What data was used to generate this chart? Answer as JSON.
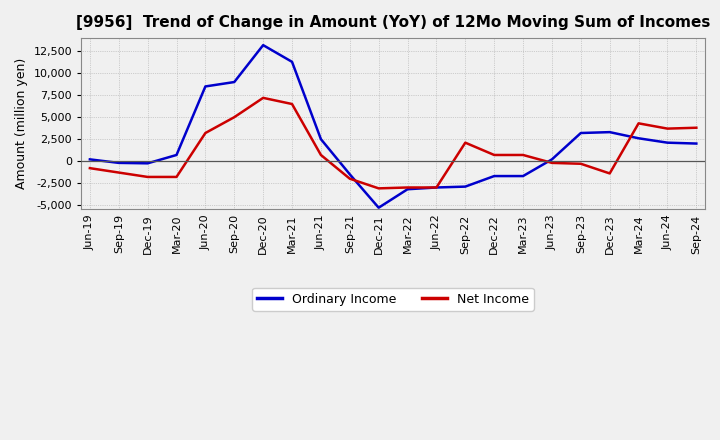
{
  "title": "[9956]  Trend of Change in Amount (YoY) of 12Mo Moving Sum of Incomes",
  "ylabel": "Amount (million yen)",
  "background_color": "#f0f0f0",
  "plot_bg_color": "#f0f0f0",
  "grid_color": "#999999",
  "x_labels": [
    "Jun-19",
    "Sep-19",
    "Dec-19",
    "Mar-20",
    "Jun-20",
    "Sep-20",
    "Dec-20",
    "Mar-21",
    "Jun-21",
    "Sep-21",
    "Dec-21",
    "Mar-22",
    "Jun-22",
    "Sep-22",
    "Dec-22",
    "Mar-23",
    "Jun-23",
    "Sep-23",
    "Dec-23",
    "Mar-24",
    "Jun-24",
    "Sep-24"
  ],
  "ordinary_income": [
    200,
    -200,
    -250,
    700,
    8500,
    9000,
    13200,
    11300,
    2500,
    -1500,
    -5300,
    -3200,
    -3000,
    -2900,
    -1700,
    -1700,
    200,
    3200,
    3300,
    2600,
    2100,
    2000
  ],
  "net_income": [
    -800,
    -1300,
    -1800,
    -1800,
    3200,
    5000,
    7200,
    6500,
    700,
    -2000,
    -3100,
    -3000,
    -3000,
    2100,
    700,
    700,
    -200,
    -300,
    -1400,
    4300,
    3700,
    3800
  ],
  "ordinary_color": "#0000cc",
  "net_color": "#cc0000",
  "ylim": [
    -5500,
    14000
  ],
  "yticks": [
    -5000,
    -2500,
    0,
    2500,
    5000,
    7500,
    10000,
    12500
  ],
  "line_width": 1.8,
  "title_fontsize": 11,
  "legend_fontsize": 9,
  "tick_fontsize": 8,
  "ylabel_fontsize": 9
}
